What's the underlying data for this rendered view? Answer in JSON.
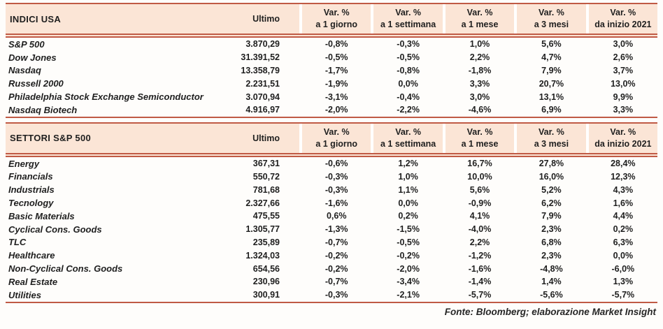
{
  "colors": {
    "header_bg": "#fbe5d6",
    "rule": "#c05a45",
    "text": "#1f1f1f"
  },
  "tables": [
    {
      "title": "INDICI USA",
      "ultimo_label": "Ultimo",
      "var_headers": [
        {
          "line1": "Var. %",
          "line2": "a 1 giorno"
        },
        {
          "line1": "Var. %",
          "line2": "a 1 settimana"
        },
        {
          "line1": "Var. %",
          "line2": "a 1 mese"
        },
        {
          "line1": "Var. %",
          "line2": "a 3 mesi"
        },
        {
          "line1": "Var. %",
          "line2": "da inizio 2021"
        }
      ],
      "rows": [
        {
          "name": "S&P 500",
          "ultimo": "3.870,29",
          "vars": [
            "-0,8%",
            "-0,3%",
            "1,0%",
            "5,6%",
            "3,0%"
          ]
        },
        {
          "name": "Dow Jones",
          "ultimo": "31.391,52",
          "vars": [
            "-0,5%",
            "-0,5%",
            "2,2%",
            "4,7%",
            "2,6%"
          ]
        },
        {
          "name": "Nasdaq",
          "ultimo": "13.358,79",
          "vars": [
            "-1,7%",
            "-0,8%",
            "-1,8%",
            "7,9%",
            "3,7%"
          ]
        },
        {
          "name": "Russell 2000",
          "ultimo": "2.231,51",
          "vars": [
            "-1,9%",
            "0,0%",
            "3,3%",
            "20,7%",
            "13,0%"
          ]
        },
        {
          "name": "Philadelphia Stock Exchange Semiconductor",
          "ultimo": "3.070,94",
          "vars": [
            "-3,1%",
            "-0,4%",
            "3,0%",
            "13,1%",
            "9,9%"
          ]
        },
        {
          "name": "Nasdaq Biotech",
          "ultimo": "4.916,97",
          "vars": [
            "-2,0%",
            "-2,2%",
            "-4,6%",
            "6,9%",
            "3,3%"
          ]
        }
      ]
    },
    {
      "title": "SETTORI S&P 500",
      "ultimo_label": "Ultimo",
      "var_headers": [
        {
          "line1": "Var. %",
          "line2": "a 1 giorno"
        },
        {
          "line1": "Var. %",
          "line2": "a 1 settimana"
        },
        {
          "line1": "Var. %",
          "line2": "a 1 mese"
        },
        {
          "line1": "Var. %",
          "line2": "a 3 mesi"
        },
        {
          "line1": "Var. %",
          "line2": "da inizio 2021"
        }
      ],
      "rows": [
        {
          "name": "Energy",
          "ultimo": "367,31",
          "vars": [
            "-0,6%",
            "1,2%",
            "16,7%",
            "27,8%",
            "28,4%"
          ]
        },
        {
          "name": "Financials",
          "ultimo": "550,72",
          "vars": [
            "-0,3%",
            "1,0%",
            "10,0%",
            "16,0%",
            "12,3%"
          ]
        },
        {
          "name": "Industrials",
          "ultimo": "781,68",
          "vars": [
            "-0,3%",
            "1,1%",
            "5,6%",
            "5,2%",
            "4,3%"
          ]
        },
        {
          "name": "Tecnology",
          "ultimo": "2.327,66",
          "vars": [
            "-1,6%",
            "0,0%",
            "-0,9%",
            "6,2%",
            "1,6%"
          ]
        },
        {
          "name": "Basic Materials",
          "ultimo": "475,55",
          "vars": [
            "0,6%",
            "0,2%",
            "4,1%",
            "7,9%",
            "4,4%"
          ]
        },
        {
          "name": "Cyclical Cons. Goods",
          "ultimo": "1.305,77",
          "vars": [
            "-1,3%",
            "-1,5%",
            "-4,0%",
            "2,3%",
            "0,2%"
          ]
        },
        {
          "name": "TLC",
          "ultimo": "235,89",
          "vars": [
            "-0,7%",
            "-0,5%",
            "2,2%",
            "6,8%",
            "6,3%"
          ]
        },
        {
          "name": "Healthcare",
          "ultimo": "1.324,03",
          "vars": [
            "-0,2%",
            "-0,2%",
            "-1,2%",
            "2,3%",
            "0,0%"
          ]
        },
        {
          "name": "Non-Cyclical Cons. Goods",
          "ultimo": "654,56",
          "vars": [
            "-0,2%",
            "-2,0%",
            "-1,6%",
            "-4,8%",
            "-6,0%"
          ]
        },
        {
          "name": "Real Estate",
          "ultimo": "230,96",
          "vars": [
            "-0,7%",
            "-3,4%",
            "-1,4%",
            "1,4%",
            "1,3%"
          ]
        },
        {
          "name": "Utilities",
          "ultimo": "300,91",
          "vars": [
            "-0,3%",
            "-2,1%",
            "-5,7%",
            "-5,6%",
            "-5,7%"
          ]
        }
      ]
    }
  ],
  "footer": {
    "source_label": "Fonte: Bloomberg; elaborazione Market Insight"
  }
}
